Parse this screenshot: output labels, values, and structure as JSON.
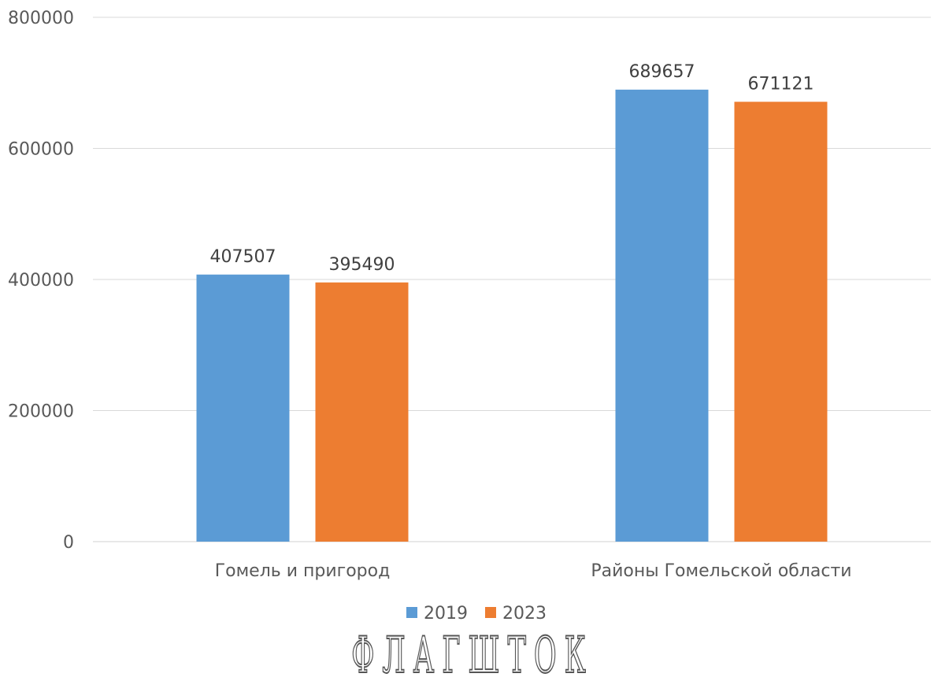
{
  "chart_data": {
    "type": "bar",
    "categories": [
      "Гомель и пригород",
      "Районы Гомельской области"
    ],
    "series": [
      {
        "name": "2019",
        "values": [
          407507,
          689657
        ],
        "color": "#5B9BD5"
      },
      {
        "name": "2023",
        "values": [
          395490,
          671121
        ],
        "color": "#ED7D31"
      }
    ],
    "ylim": [
      0,
      800000
    ],
    "yticks": [
      0,
      200000,
      400000,
      600000,
      800000
    ],
    "grid": true,
    "legend_position": "bottom",
    "data_labels": true
  },
  "logo_text": "ФЛАГШТОК"
}
